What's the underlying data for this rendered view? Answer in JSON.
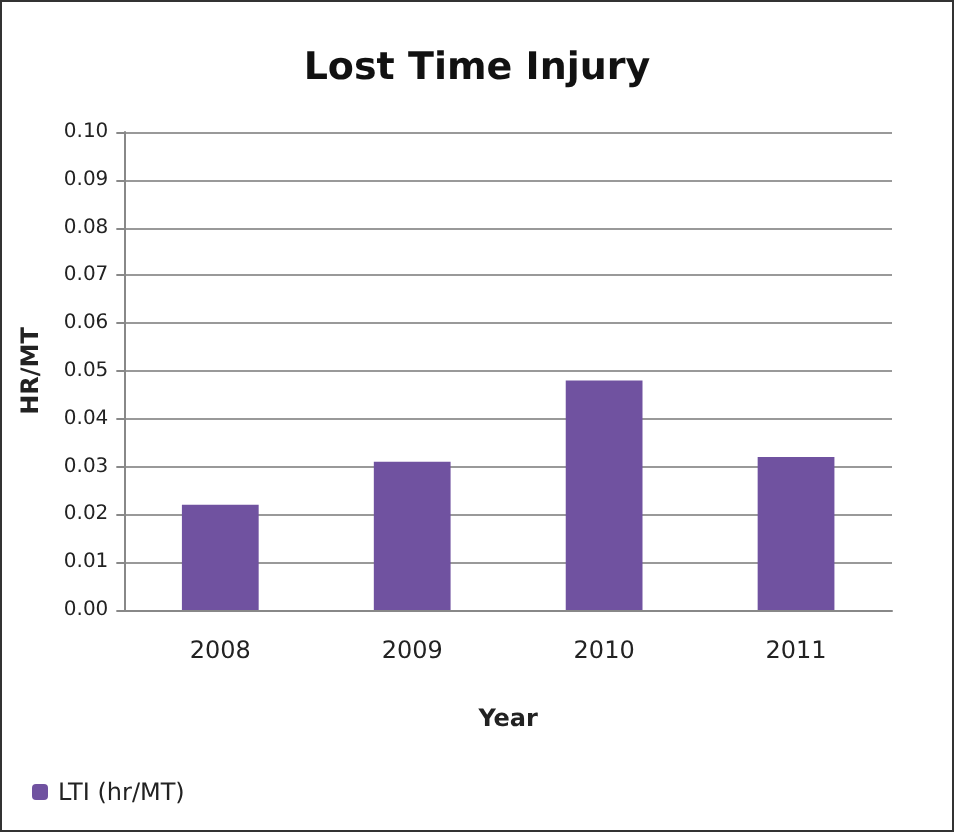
{
  "chart_data": {
    "type": "bar",
    "title": "Lost Time Injury",
    "xlabel": "Year",
    "ylabel": "HR/MT",
    "categories": [
      "2008",
      "2009",
      "2010",
      "2011"
    ],
    "series": [
      {
        "name": "LTI (hr/MT)",
        "color": "#7052a0",
        "values": [
          0.022,
          0.031,
          0.048,
          0.032
        ]
      }
    ],
    "ylim": [
      0,
      0.1
    ],
    "yticks": [
      {
        "value": 0,
        "label": "0.00"
      },
      {
        "value": 0.01,
        "label": "0.01"
      },
      {
        "value": 0.02,
        "label": "0.02"
      },
      {
        "value": 0.03,
        "label": "0.03"
      },
      {
        "value": 0.04,
        "label": "0.04"
      },
      {
        "value": 0.05,
        "label": "0.05"
      },
      {
        "value": 0.06,
        "label": "0.06"
      },
      {
        "value": 0.07,
        "label": "0.07"
      },
      {
        "value": 0.08,
        "label": "0.08"
      },
      {
        "value": 0.09,
        "label": "0.09"
      },
      {
        "value": 0.1,
        "label": "0.10"
      }
    ],
    "grid": "y",
    "legend": "bottom left"
  }
}
